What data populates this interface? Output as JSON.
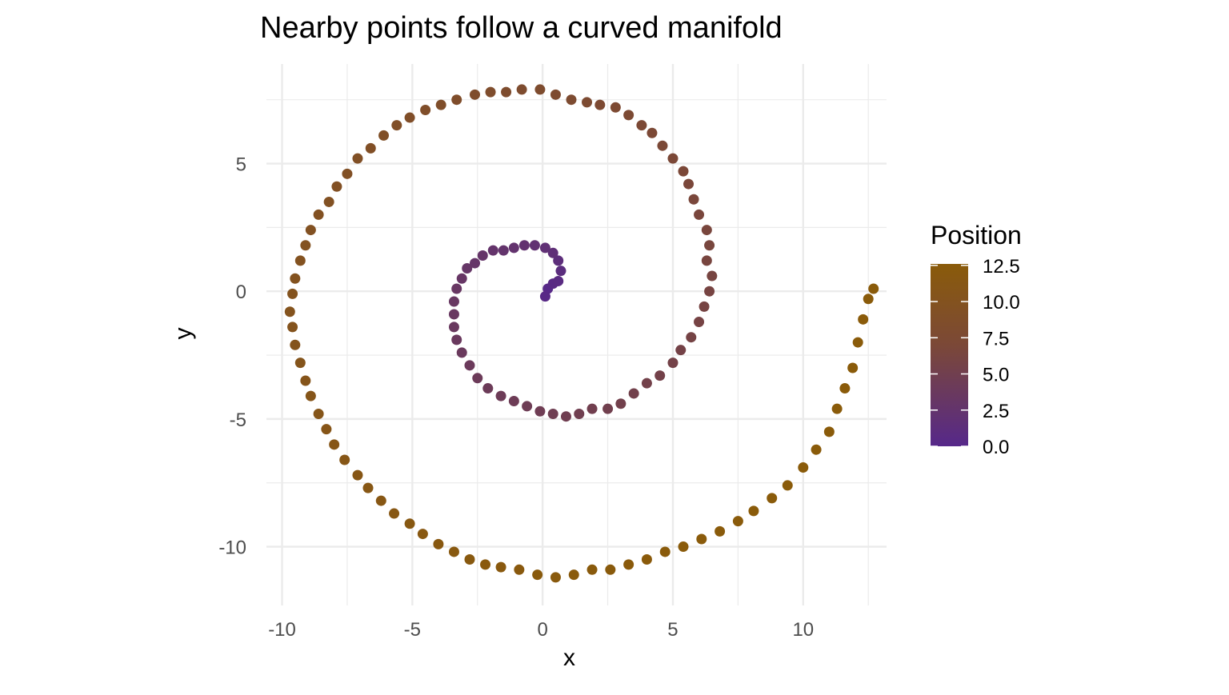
{
  "chart_data": {
    "type": "scatter",
    "title": "Nearby points follow a curved manifold",
    "xlabel": "x",
    "ylabel": "y",
    "xlim": [
      -10.6,
      13.2
    ],
    "ylim": [
      -12.3,
      8.9
    ],
    "x_ticks": [
      -10,
      -5,
      0,
      5,
      10
    ],
    "y_ticks": [
      -10,
      -5,
      0,
      5
    ],
    "grid": true,
    "legend": {
      "title": "Position",
      "placement": "right",
      "type": "colorbar",
      "range": [
        0,
        12.6
      ],
      "ticks": [
        "12.5",
        "10.0",
        "7.5",
        "5.0",
        "2.5",
        "0.0"
      ],
      "tick_values": [
        12.5,
        10.0,
        7.5,
        5.0,
        2.5,
        0.0
      ]
    },
    "color_scale": {
      "low": "#56288A",
      "mid": "#7B4838",
      "high": "#8A5B0A"
    },
    "point_color": "Position",
    "points": [
      {
        "x": 0.2,
        "y": 0.1,
        "position": 0.2
      },
      {
        "x": 0.1,
        "y": -0.2,
        "position": 0.3
      },
      {
        "x": 0.4,
        "y": 0.3,
        "position": 0.5
      },
      {
        "x": 0.6,
        "y": 0.4,
        "position": 0.7
      },
      {
        "x": 0.7,
        "y": 0.8,
        "position": 1.0
      },
      {
        "x": 0.6,
        "y": 1.2,
        "position": 1.3
      },
      {
        "x": 0.4,
        "y": 1.5,
        "position": 1.6
      },
      {
        "x": 0.1,
        "y": 1.7,
        "position": 1.8
      },
      {
        "x": -0.3,
        "y": 1.8,
        "position": 2.0
      },
      {
        "x": -0.7,
        "y": 1.8,
        "position": 2.2
      },
      {
        "x": -1.1,
        "y": 1.7,
        "position": 2.4
      },
      {
        "x": -1.5,
        "y": 1.6,
        "position": 2.5
      },
      {
        "x": -1.9,
        "y": 1.6,
        "position": 2.6
      },
      {
        "x": -2.3,
        "y": 1.4,
        "position": 2.8
      },
      {
        "x": -2.6,
        "y": 1.1,
        "position": 2.9
      },
      {
        "x": -2.9,
        "y": 0.9,
        "position": 3.0
      },
      {
        "x": -3.1,
        "y": 0.5,
        "position": 3.1
      },
      {
        "x": -3.3,
        "y": 0.1,
        "position": 3.3
      },
      {
        "x": -3.4,
        "y": -0.4,
        "position": 3.4
      },
      {
        "x": -3.4,
        "y": -0.9,
        "position": 3.5
      },
      {
        "x": -3.4,
        "y": -1.4,
        "position": 3.6
      },
      {
        "x": -3.3,
        "y": -1.9,
        "position": 3.7
      },
      {
        "x": -3.1,
        "y": -2.4,
        "position": 3.8
      },
      {
        "x": -2.8,
        "y": -2.9,
        "position": 4.0
      },
      {
        "x": -2.5,
        "y": -3.4,
        "position": 4.1
      },
      {
        "x": -2.1,
        "y": -3.8,
        "position": 4.2
      },
      {
        "x": -1.6,
        "y": -4.1,
        "position": 4.3
      },
      {
        "x": -1.1,
        "y": -4.3,
        "position": 4.4
      },
      {
        "x": -0.6,
        "y": -4.5,
        "position": 4.5
      },
      {
        "x": -0.1,
        "y": -4.7,
        "position": 4.6
      },
      {
        "x": 0.4,
        "y": -4.8,
        "position": 4.7
      },
      {
        "x": 0.9,
        "y": -4.9,
        "position": 4.8
      },
      {
        "x": 1.4,
        "y": -4.8,
        "position": 4.9
      },
      {
        "x": 1.9,
        "y": -4.6,
        "position": 5.0
      },
      {
        "x": 2.5,
        "y": -4.6,
        "position": 5.1
      },
      {
        "x": 3.0,
        "y": -4.4,
        "position": 5.2
      },
      {
        "x": 3.5,
        "y": -4.0,
        "position": 5.3
      },
      {
        "x": 4.0,
        "y": -3.6,
        "position": 5.4
      },
      {
        "x": 4.5,
        "y": -3.3,
        "position": 5.5
      },
      {
        "x": 5.0,
        "y": -2.8,
        "position": 5.6
      },
      {
        "x": 5.3,
        "y": -2.3,
        "position": 5.7
      },
      {
        "x": 5.7,
        "y": -1.8,
        "position": 5.8
      },
      {
        "x": 6.0,
        "y": -1.2,
        "position": 5.9
      },
      {
        "x": 6.2,
        "y": -0.6,
        "position": 6.0
      },
      {
        "x": 6.4,
        "y": 0.0,
        "position": 6.1
      },
      {
        "x": 6.5,
        "y": 0.6,
        "position": 6.2
      },
      {
        "x": 6.3,
        "y": 1.2,
        "position": 6.3
      },
      {
        "x": 6.4,
        "y": 1.8,
        "position": 6.4
      },
      {
        "x": 6.3,
        "y": 2.4,
        "position": 6.5
      },
      {
        "x": 6.0,
        "y": 3.0,
        "position": 6.6
      },
      {
        "x": 5.8,
        "y": 3.6,
        "position": 6.7
      },
      {
        "x": 5.6,
        "y": 4.2,
        "position": 6.8
      },
      {
        "x": 5.4,
        "y": 4.7,
        "position": 6.9
      },
      {
        "x": 5.0,
        "y": 5.2,
        "position": 7.0
      },
      {
        "x": 4.6,
        "y": 5.7,
        "position": 7.1
      },
      {
        "x": 4.2,
        "y": 6.2,
        "position": 7.2
      },
      {
        "x": 3.8,
        "y": 6.5,
        "position": 7.3
      },
      {
        "x": 3.3,
        "y": 6.9,
        "position": 7.4
      },
      {
        "x": 2.8,
        "y": 7.2,
        "position": 7.5
      },
      {
        "x": 2.2,
        "y": 7.3,
        "position": 7.6
      },
      {
        "x": 1.7,
        "y": 7.4,
        "position": 7.7
      },
      {
        "x": 1.1,
        "y": 7.5,
        "position": 7.8
      },
      {
        "x": 0.5,
        "y": 7.7,
        "position": 7.9
      },
      {
        "x": -0.1,
        "y": 7.9,
        "position": 8.0
      },
      {
        "x": -0.8,
        "y": 7.9,
        "position": 8.1
      },
      {
        "x": -1.4,
        "y": 7.8,
        "position": 8.2
      },
      {
        "x": -2.0,
        "y": 7.8,
        "position": 8.3
      },
      {
        "x": -2.6,
        "y": 7.7,
        "position": 8.4
      },
      {
        "x": -3.3,
        "y": 7.5,
        "position": 8.5
      },
      {
        "x": -3.9,
        "y": 7.3,
        "position": 8.6
      },
      {
        "x": -4.5,
        "y": 7.1,
        "position": 8.7
      },
      {
        "x": -5.1,
        "y": 6.8,
        "position": 8.8
      },
      {
        "x": -5.6,
        "y": 6.5,
        "position": 8.9
      },
      {
        "x": -6.1,
        "y": 6.1,
        "position": 9.0
      },
      {
        "x": -6.6,
        "y": 5.6,
        "position": 9.1
      },
      {
        "x": -7.1,
        "y": 5.2,
        "position": 9.2
      },
      {
        "x": -7.5,
        "y": 4.6,
        "position": 9.3
      },
      {
        "x": -7.9,
        "y": 4.1,
        "position": 9.4
      },
      {
        "x": -8.2,
        "y": 3.5,
        "position": 9.5
      },
      {
        "x": -8.6,
        "y": 3.0,
        "position": 9.6
      },
      {
        "x": -8.9,
        "y": 2.4,
        "position": 9.7
      },
      {
        "x": -9.1,
        "y": 1.8,
        "position": 9.8
      },
      {
        "x": -9.3,
        "y": 1.2,
        "position": 9.9
      },
      {
        "x": -9.5,
        "y": 0.5,
        "position": 10.0
      },
      {
        "x": -9.6,
        "y": -0.1,
        "position": 10.1
      },
      {
        "x": -9.7,
        "y": -0.8,
        "position": 10.2
      },
      {
        "x": -9.6,
        "y": -1.4,
        "position": 10.3
      },
      {
        "x": -9.5,
        "y": -2.1,
        "position": 10.4
      },
      {
        "x": -9.3,
        "y": -2.8,
        "position": 10.5
      },
      {
        "x": -9.1,
        "y": -3.5,
        "position": 10.6
      },
      {
        "x": -8.9,
        "y": -4.1,
        "position": 10.7
      },
      {
        "x": -8.6,
        "y": -4.8,
        "position": 10.8
      },
      {
        "x": -8.3,
        "y": -5.4,
        "position": 10.9
      },
      {
        "x": -8.0,
        "y": -6.0,
        "position": 11.0
      },
      {
        "x": -7.6,
        "y": -6.6,
        "position": 11.1
      },
      {
        "x": -7.1,
        "y": -7.2,
        "position": 11.2
      },
      {
        "x": -6.7,
        "y": -7.7,
        "position": 11.3
      },
      {
        "x": -6.2,
        "y": -8.2,
        "position": 11.4
      },
      {
        "x": -5.7,
        "y": -8.7,
        "position": 11.5
      },
      {
        "x": -5.1,
        "y": -9.1,
        "position": 11.6
      },
      {
        "x": -4.6,
        "y": -9.5,
        "position": 11.7
      },
      {
        "x": -4.0,
        "y": -9.9,
        "position": 11.8
      },
      {
        "x": -3.4,
        "y": -10.2,
        "position": 11.9
      },
      {
        "x": -2.8,
        "y": -10.5,
        "position": 12.0
      },
      {
        "x": -2.2,
        "y": -10.7,
        "position": 12.05
      },
      {
        "x": -1.6,
        "y": -10.8,
        "position": 12.1
      },
      {
        "x": -0.9,
        "y": -10.9,
        "position": 12.15
      },
      {
        "x": -0.2,
        "y": -11.1,
        "position": 12.2
      },
      {
        "x": 0.5,
        "y": -11.2,
        "position": 12.25
      },
      {
        "x": 1.2,
        "y": -11.1,
        "position": 12.3
      },
      {
        "x": 1.9,
        "y": -10.9,
        "position": 12.35
      },
      {
        "x": 2.6,
        "y": -10.9,
        "position": 12.4
      },
      {
        "x": 3.3,
        "y": -10.7,
        "position": 12.42
      },
      {
        "x": 4.0,
        "y": -10.5,
        "position": 12.44
      },
      {
        "x": 4.7,
        "y": -10.2,
        "position": 12.46
      },
      {
        "x": 5.4,
        "y": -10.0,
        "position": 12.48
      },
      {
        "x": 6.1,
        "y": -9.7,
        "position": 12.5
      },
      {
        "x": 6.8,
        "y": -9.4,
        "position": 12.52
      },
      {
        "x": 7.5,
        "y": -9.0,
        "position": 12.53
      },
      {
        "x": 8.1,
        "y": -8.6,
        "position": 12.54
      },
      {
        "x": 8.8,
        "y": -8.1,
        "position": 12.55
      },
      {
        "x": 9.4,
        "y": -7.6,
        "position": 12.56
      },
      {
        "x": 10.0,
        "y": -6.9,
        "position": 12.57
      },
      {
        "x": 10.5,
        "y": -6.2,
        "position": 12.58
      },
      {
        "x": 11.0,
        "y": -5.5,
        "position": 12.58
      },
      {
        "x": 11.3,
        "y": -4.6,
        "position": 12.59
      },
      {
        "x": 11.6,
        "y": -3.8,
        "position": 12.59
      },
      {
        "x": 11.9,
        "y": -3.0,
        "position": 12.6
      },
      {
        "x": 12.1,
        "y": -2.0,
        "position": 12.6
      },
      {
        "x": 12.3,
        "y": -1.1,
        "position": 12.6
      },
      {
        "x": 12.5,
        "y": -0.3,
        "position": 12.6
      },
      {
        "x": 12.7,
        "y": 0.1,
        "position": 12.6
      }
    ]
  }
}
